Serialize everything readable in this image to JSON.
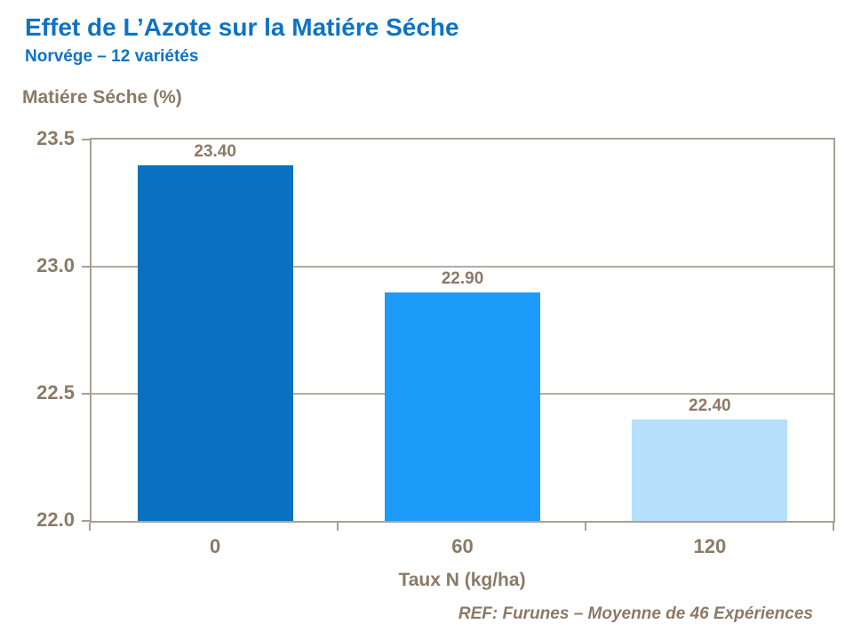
{
  "header": {
    "title": "Effet de L’Azote sur la Matiére Séche",
    "subtitle": "Norvége – 12 variétés"
  },
  "chart_data": {
    "type": "bar",
    "title": "Effet de L’Azote sur la Matiére Séche",
    "subtitle": "Norvége – 12 variétés",
    "categories": [
      "0",
      "60",
      "120"
    ],
    "values": [
      23.4,
      22.9,
      22.4
    ],
    "value_labels": [
      "23.40",
      "22.90",
      "22.40"
    ],
    "bar_colors": [
      "#0a70c0",
      "#1d9bfb",
      "#b5dffb"
    ],
    "xlabel": "Taux N (kg/ha)",
    "ylabel": "Matiére Séche (%)",
    "ylim": [
      22.0,
      23.5
    ],
    "yticks": [
      23.5,
      23.0,
      22.5,
      22.0
    ],
    "ytick_labels": [
      "23.5",
      "23.0",
      "22.5",
      "22.0"
    ],
    "grid": "horizontal",
    "legend": "none"
  },
  "footer": {
    "text": "REF: Furunes – Moyenne de 46 Expériences"
  },
  "colors": {
    "title_blue": "#0d73c5",
    "axis_text_brown": "#8a7a67",
    "plot_border": "#a9a093",
    "gridline": "#b3ab9f",
    "background": "#ffffff"
  }
}
